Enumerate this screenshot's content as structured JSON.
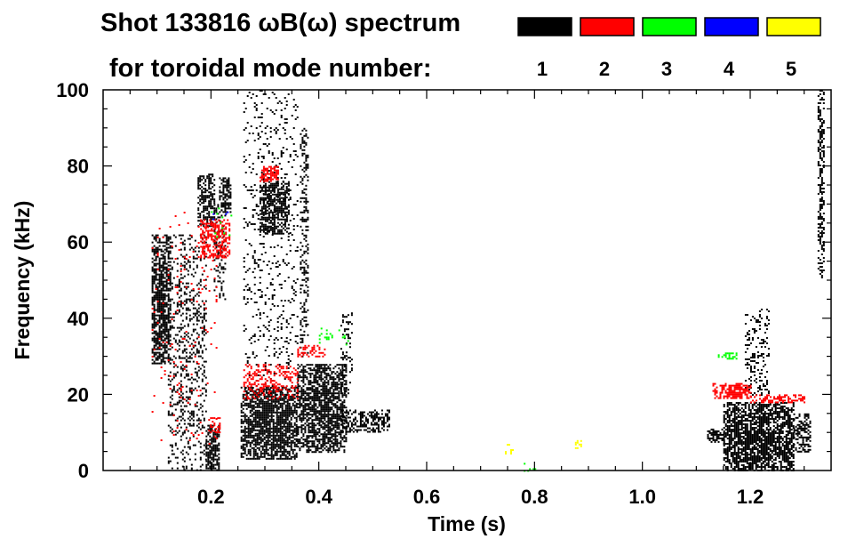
{
  "chart_data": {
    "type": "heatmap",
    "title_line1": "Shot 133816 ωB(ω) spectrum",
    "title_line2": "for toroidal mode number:",
    "xlabel": "Time (s)",
    "ylabel": "Frequency (kHz)",
    "xlim": [
      0.0,
      1.35
    ],
    "ylim": [
      0,
      100
    ],
    "xticks": [
      {
        "value": 0.2,
        "label": "0.2"
      },
      {
        "value": 0.4,
        "label": "0.4"
      },
      {
        "value": 0.6,
        "label": "0.6"
      },
      {
        "value": 0.8,
        "label": "0.8"
      },
      {
        "value": 1.0,
        "label": "1.0"
      },
      {
        "value": 1.2,
        "label": "1.2"
      }
    ],
    "yticks": [
      {
        "value": 0,
        "label": "0"
      },
      {
        "value": 20,
        "label": "20"
      },
      {
        "value": 40,
        "label": "40"
      },
      {
        "value": 60,
        "label": "60"
      },
      {
        "value": 80,
        "label": "80"
      },
      {
        "value": 100,
        "label": "100"
      }
    ],
    "legend": {
      "placement": "top-right",
      "entries": [
        {
          "mode": "1",
          "color": "#000000"
        },
        {
          "mode": "2",
          "color": "#ff0000"
        },
        {
          "mode": "3",
          "color": "#00ff00"
        },
        {
          "mode": "4",
          "color": "#0000ff"
        },
        {
          "mode": "5",
          "color": "#ffff00"
        }
      ]
    },
    "series": [
      {
        "mode": 1,
        "color": "#000000",
        "regions": [
          {
            "t": [
              0.09,
              0.125
            ],
            "f": [
              28,
              62
            ],
            "density": 0.8
          },
          {
            "t": [
              0.12,
              0.19
            ],
            "f": [
              0,
              62
            ],
            "density": 0.25
          },
          {
            "t": [
              0.175,
              0.205
            ],
            "f": [
              64,
              78
            ],
            "density": 0.6
          },
          {
            "t": [
              0.19,
              0.215
            ],
            "f": [
              0,
              12
            ],
            "density": 0.75
          },
          {
            "t": [
              0.205,
              0.225
            ],
            "f": [
              45,
              70
            ],
            "density": 0.35
          },
          {
            "t": [
              0.215,
              0.235
            ],
            "f": [
              68,
              77
            ],
            "density": 0.7
          },
          {
            "t": [
              0.255,
              0.36
            ],
            "f": [
              3,
              22
            ],
            "density": 0.85
          },
          {
            "t": [
              0.26,
              0.36
            ],
            "f": [
              20,
              100
            ],
            "density": 0.12
          },
          {
            "t": [
              0.29,
              0.345
            ],
            "f": [
              62,
              76
            ],
            "density": 0.75
          },
          {
            "t": [
              0.36,
              0.45
            ],
            "f": [
              5,
              28
            ],
            "density": 0.75
          },
          {
            "t": [
              0.365,
              0.38
            ],
            "f": [
              30,
              90
            ],
            "density": 0.35
          },
          {
            "t": [
              0.44,
              0.53
            ],
            "f": [
              10,
              16
            ],
            "density": 0.65
          },
          {
            "t": [
              0.44,
              0.46
            ],
            "f": [
              20,
              42
            ],
            "density": 0.25
          },
          {
            "t": [
              1.15,
              1.28
            ],
            "f": [
              0,
              18
            ],
            "density": 0.85
          },
          {
            "t": [
              1.12,
              1.15
            ],
            "f": [
              7,
              11
            ],
            "density": 0.7
          },
          {
            "t": [
              1.28,
              1.31
            ],
            "f": [
              5,
              15
            ],
            "density": 0.55
          },
          {
            "t": [
              1.19,
              1.235
            ],
            "f": [
              20,
              43
            ],
            "density": 0.25
          },
          {
            "t": [
              1.325,
              1.335
            ],
            "f": [
              50,
              100
            ],
            "density": 0.55
          }
        ]
      },
      {
        "mode": 2,
        "color": "#ff0000",
        "regions": [
          {
            "t": [
              0.18,
              0.235
            ],
            "f": [
              56,
              66
            ],
            "density": 0.6
          },
          {
            "t": [
              0.29,
              0.325
            ],
            "f": [
              76,
              80
            ],
            "density": 0.8
          },
          {
            "t": [
              0.26,
              0.36
            ],
            "f": [
              19,
              28
            ],
            "density": 0.35
          },
          {
            "t": [
              0.36,
              0.41
            ],
            "f": [
              30,
              33
            ],
            "density": 0.5
          },
          {
            "t": [
              0.195,
              0.215
            ],
            "f": [
              10,
              14
            ],
            "density": 0.4
          },
          {
            "t": [
              1.13,
              1.2
            ],
            "f": [
              19,
              23
            ],
            "density": 0.8
          },
          {
            "t": [
              1.2,
              1.3
            ],
            "f": [
              18,
              20
            ],
            "density": 0.7
          },
          {
            "t": [
              0.09,
              0.21
            ],
            "f": [
              6,
              68
            ],
            "density": 0.03
          }
        ]
      },
      {
        "mode": 3,
        "color": "#00ff00",
        "regions": [
          {
            "t": [
              1.14,
              1.175
            ],
            "f": [
              29.5,
              31
            ],
            "density": 0.6
          },
          {
            "t": [
              0.4,
              0.46
            ],
            "f": [
              33,
              38
            ],
            "density": 0.08
          },
          {
            "t": [
              0.2,
              0.24
            ],
            "f": [
              60,
              70
            ],
            "density": 0.03
          },
          {
            "t": [
              0.78,
              0.8
            ],
            "f": [
              0,
              2
            ],
            "density": 0.2
          }
        ]
      },
      {
        "mode": 4,
        "color": "#0000ff",
        "regions": [
          {
            "t": [
              0.2,
              0.23
            ],
            "f": [
              66,
              69
            ],
            "density": 0.1
          }
        ]
      },
      {
        "mode": 5,
        "color": "#ffff00",
        "regions": [
          {
            "t": [
              0.745,
              0.76
            ],
            "f": [
              4,
              7
            ],
            "density": 0.35
          },
          {
            "t": [
              0.875,
              0.89
            ],
            "f": [
              6,
              8
            ],
            "density": 0.4
          }
        ]
      }
    ]
  }
}
